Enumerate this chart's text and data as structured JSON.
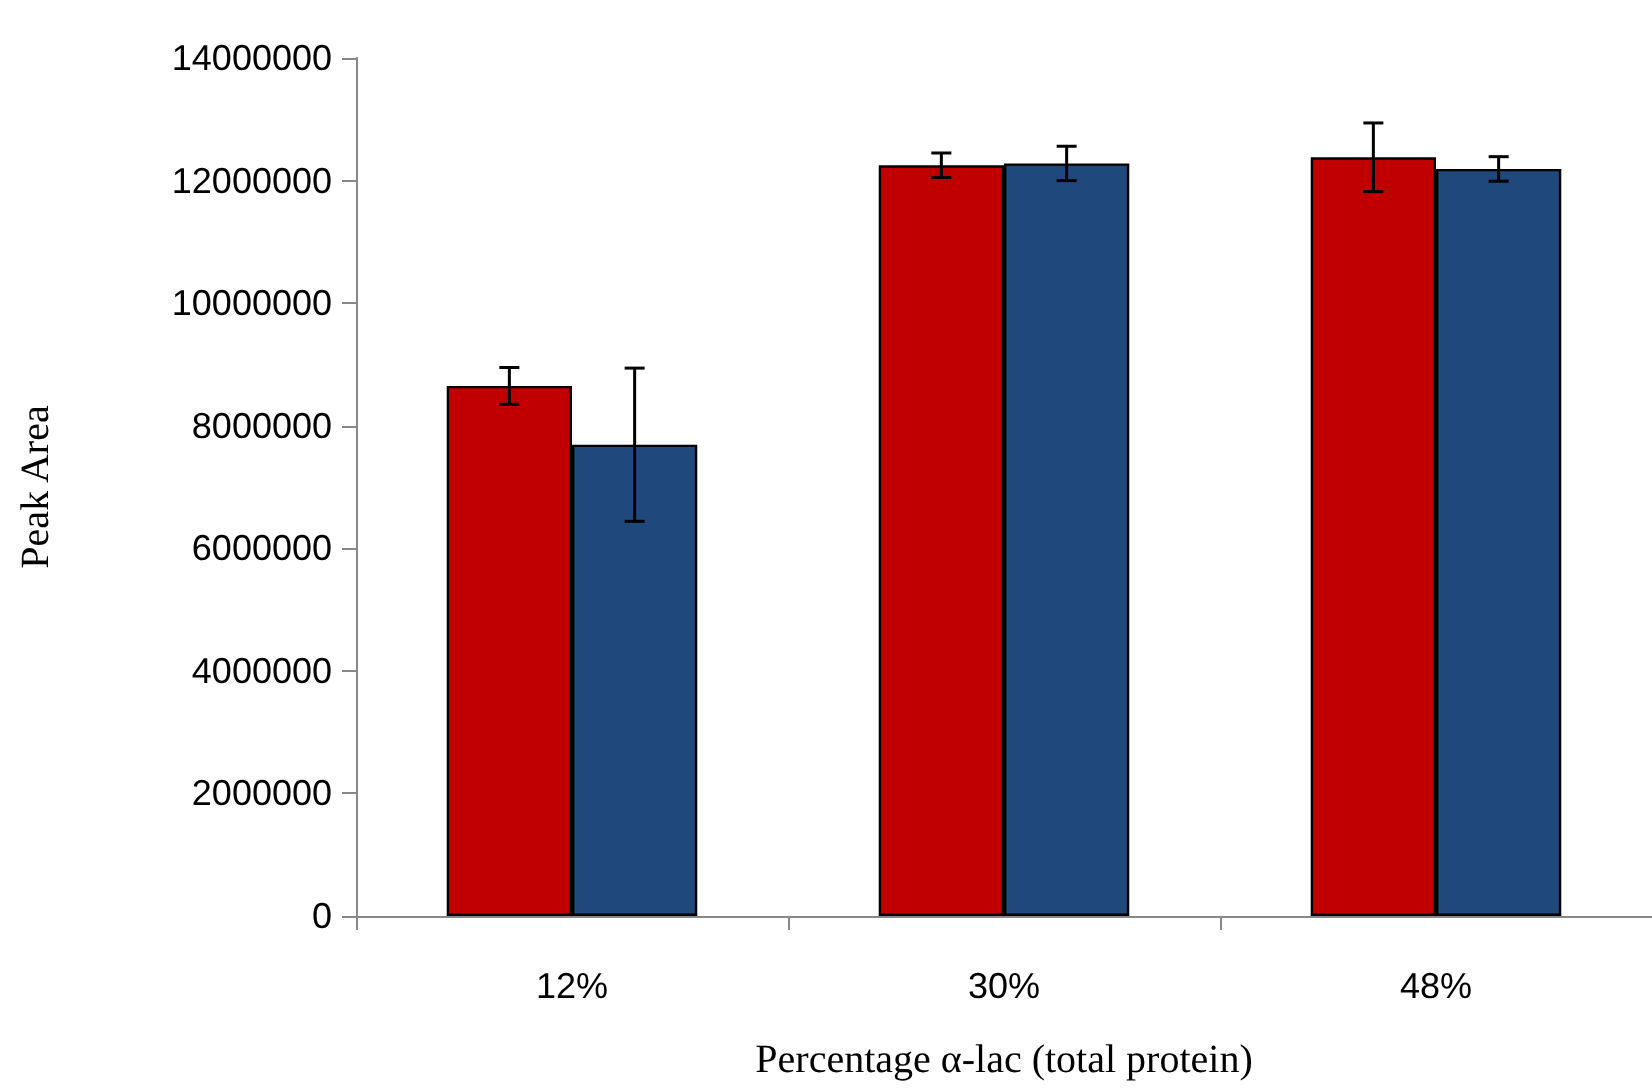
{
  "chart_data": {
    "type": "bar",
    "xlabel": "Percentage α-lac (total protein)",
    "ylabel": "Peak Area",
    "categories": [
      "12%",
      "30%",
      "48%"
    ],
    "series": [
      {
        "color": "#c00000",
        "values": [
          8650000,
          12250000,
          12380000
        ],
        "errors": [
          300000,
          200000,
          560000
        ]
      },
      {
        "color": "#1f497d",
        "values": [
          7690000,
          12280000,
          12190000
        ],
        "errors": [
          1250000,
          280000,
          200000
        ]
      }
    ],
    "ylim": [
      0,
      14000000
    ],
    "yticks": [
      0,
      2000000,
      4000000,
      6000000,
      8000000,
      10000000,
      12000000,
      14000000
    ],
    "grid": false
  }
}
